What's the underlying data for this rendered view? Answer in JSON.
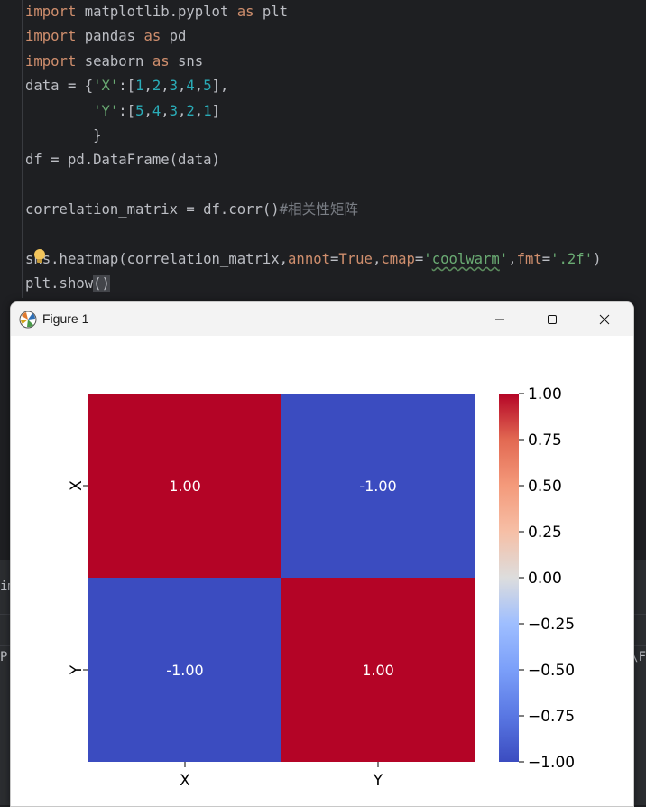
{
  "editor": {
    "lines": [
      [
        [
          "kw",
          "import"
        ],
        [
          "txt",
          " matplotlib.pyplot "
        ],
        [
          "kw",
          "as"
        ],
        [
          "txt",
          " plt"
        ]
      ],
      [
        [
          "kw",
          "import"
        ],
        [
          "txt",
          " pandas "
        ],
        [
          "kw",
          "as"
        ],
        [
          "txt",
          " pd"
        ]
      ],
      [
        [
          "kw",
          "import"
        ],
        [
          "txt",
          " seaborn "
        ],
        [
          "kw",
          "as"
        ],
        [
          "txt",
          " sns"
        ]
      ],
      [
        [
          "txt",
          "data = {"
        ],
        [
          "str",
          "'X'"
        ],
        [
          "txt",
          ":["
        ],
        [
          "num",
          "1"
        ],
        [
          "txt",
          ","
        ],
        [
          "num",
          "2"
        ],
        [
          "txt",
          ","
        ],
        [
          "num",
          "3"
        ],
        [
          "txt",
          ","
        ],
        [
          "num",
          "4"
        ],
        [
          "txt",
          ","
        ],
        [
          "num",
          "5"
        ],
        [
          "txt",
          "],"
        ]
      ],
      [
        [
          "txt",
          "        "
        ],
        [
          "str",
          "'Y'"
        ],
        [
          "txt",
          ":["
        ],
        [
          "num",
          "5"
        ],
        [
          "txt",
          ","
        ],
        [
          "num",
          "4"
        ],
        [
          "txt",
          ","
        ],
        [
          "num",
          "3"
        ],
        [
          "txt",
          ","
        ],
        [
          "num",
          "2"
        ],
        [
          "txt",
          ","
        ],
        [
          "num",
          "1"
        ],
        [
          "txt",
          "]"
        ]
      ],
      [
        [
          "txt",
          "        }"
        ]
      ],
      [
        [
          "txt",
          "df = pd.DataFrame(data)"
        ]
      ],
      [
        [
          "txt",
          ""
        ]
      ],
      [
        [
          "txt",
          "correlation_matrix = df.corr()"
        ],
        [
          "cmt",
          "#相关性矩阵"
        ]
      ],
      [
        [
          "txt",
          ""
        ]
      ],
      [
        [
          "txt",
          "sns.heatmap(correlation_matrix,"
        ],
        [
          "param",
          "annot"
        ],
        [
          "txt",
          "="
        ],
        [
          "kw",
          "True"
        ],
        [
          "txt",
          ","
        ],
        [
          "param",
          "cmap"
        ],
        [
          "txt",
          "="
        ],
        [
          "str",
          "'"
        ],
        [
          "sq",
          "coolwarm"
        ],
        [
          "str",
          "'"
        ],
        [
          "txt",
          ","
        ],
        [
          "param",
          "fmt"
        ],
        [
          "txt",
          "="
        ],
        [
          "str",
          "'.2f'"
        ],
        [
          "txt",
          ")"
        ]
      ],
      [
        [
          "txt",
          "plt.show"
        ],
        [
          "hl",
          "()"
        ]
      ]
    ]
  },
  "panel": {
    "left_text": "im",
    "left_text2": "P",
    "right_text": "\\F"
  },
  "window": {
    "title": "Figure 1",
    "minimize": "—",
    "maximize": "☐",
    "close": "✕"
  },
  "chart_data": {
    "type": "heatmap",
    "rows": [
      "X",
      "Y"
    ],
    "columns": [
      "X",
      "Y"
    ],
    "values": [
      [
        1.0,
        -1.0
      ],
      [
        -1.0,
        1.0
      ]
    ],
    "annotations": [
      [
        "1.00",
        "-1.00"
      ],
      [
        "-1.00",
        "1.00"
      ]
    ],
    "colormap": "coolwarm",
    "vmin": -1.0,
    "vmax": 1.0,
    "colorbar_ticks": [
      "1.00",
      "0.75",
      "0.50",
      "0.25",
      "0.00",
      "−0.25",
      "−0.50",
      "−0.75",
      "−1.00"
    ],
    "colorbar_tick_values": [
      1.0,
      0.75,
      0.5,
      0.25,
      0.0,
      -0.25,
      -0.5,
      -0.75,
      -1.0
    ],
    "colors": {
      "high": "#b40426",
      "low": "#3b4cc0",
      "mid": "#dddddd"
    }
  }
}
